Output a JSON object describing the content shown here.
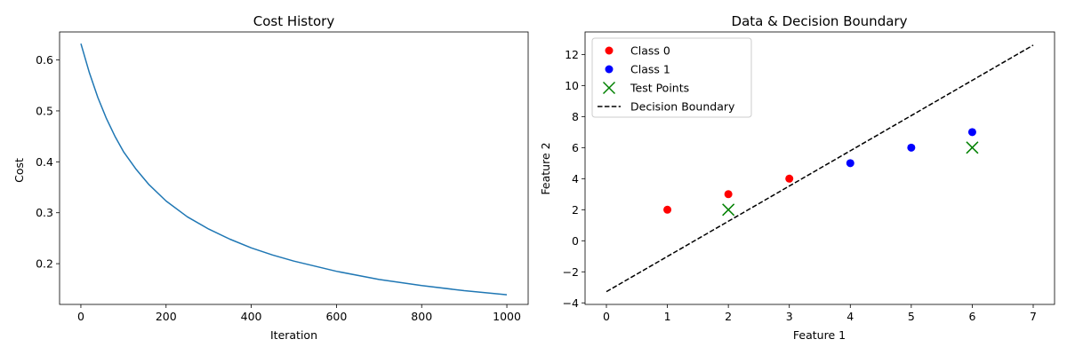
{
  "chart_data": [
    {
      "type": "line",
      "title": "Cost History",
      "xlabel": "Iteration",
      "ylabel": "Cost",
      "xlim": [
        -50,
        1050
      ],
      "ylim": [
        0.12,
        0.655
      ],
      "xticks": [
        0,
        200,
        400,
        600,
        800,
        1000
      ],
      "yticks": [
        0.2,
        0.3,
        0.4,
        0.5,
        0.6
      ],
      "xtick_labels": [
        "0",
        "200",
        "400",
        "600",
        "800",
        "1000"
      ],
      "ytick_labels": [
        "0.2",
        "0.3",
        "0.4",
        "0.5",
        "0.6"
      ],
      "grid": false,
      "series": [
        {
          "color": "#1f77b4",
          "x": [
            0,
            20,
            40,
            60,
            80,
            100,
            130,
            160,
            200,
            250,
            300,
            350,
            400,
            450,
            500,
            600,
            700,
            800,
            900,
            1000
          ],
          "y": [
            0.632,
            0.575,
            0.526,
            0.485,
            0.45,
            0.42,
            0.385,
            0.355,
            0.323,
            0.292,
            0.268,
            0.248,
            0.231,
            0.217,
            0.205,
            0.185,
            0.169,
            0.157,
            0.147,
            0.139
          ]
        }
      ]
    },
    {
      "type": "scatter",
      "title": "Data & Decision Boundary",
      "xlabel": "Feature 1",
      "ylabel": "Feature 2",
      "xlim": [
        -0.35,
        7.35
      ],
      "ylim": [
        -4.1,
        13.45
      ],
      "xticks": [
        0,
        1,
        2,
        3,
        4,
        5,
        6,
        7
      ],
      "yticks": [
        -4,
        -2,
        0,
        2,
        4,
        6,
        8,
        10,
        12
      ],
      "xtick_labels": [
        "0",
        "1",
        "2",
        "3",
        "4",
        "5",
        "6",
        "7"
      ],
      "ytick_labels": [
        "−4",
        "−2",
        "0",
        "2",
        "4",
        "6",
        "8",
        "10",
        "12"
      ],
      "grid": false,
      "legend_position": "top-left",
      "series": [
        {
          "name": "Class 0",
          "marker": "circle",
          "color": "#ff0000",
          "x": [
            1,
            2,
            3
          ],
          "y": [
            2,
            3,
            4
          ]
        },
        {
          "name": "Class 1",
          "marker": "circle",
          "color": "#0000ff",
          "x": [
            4,
            5,
            6
          ],
          "y": [
            5,
            6,
            7
          ]
        },
        {
          "name": "Test Points",
          "marker": "x",
          "color": "#008000",
          "x": [
            2,
            6
          ],
          "y": [
            2,
            6
          ]
        },
        {
          "name": "Decision Boundary",
          "marker": "dashed-line",
          "color": "#000000",
          "x": [
            0,
            7
          ],
          "y": [
            -3.28,
            12.6
          ]
        }
      ]
    }
  ]
}
